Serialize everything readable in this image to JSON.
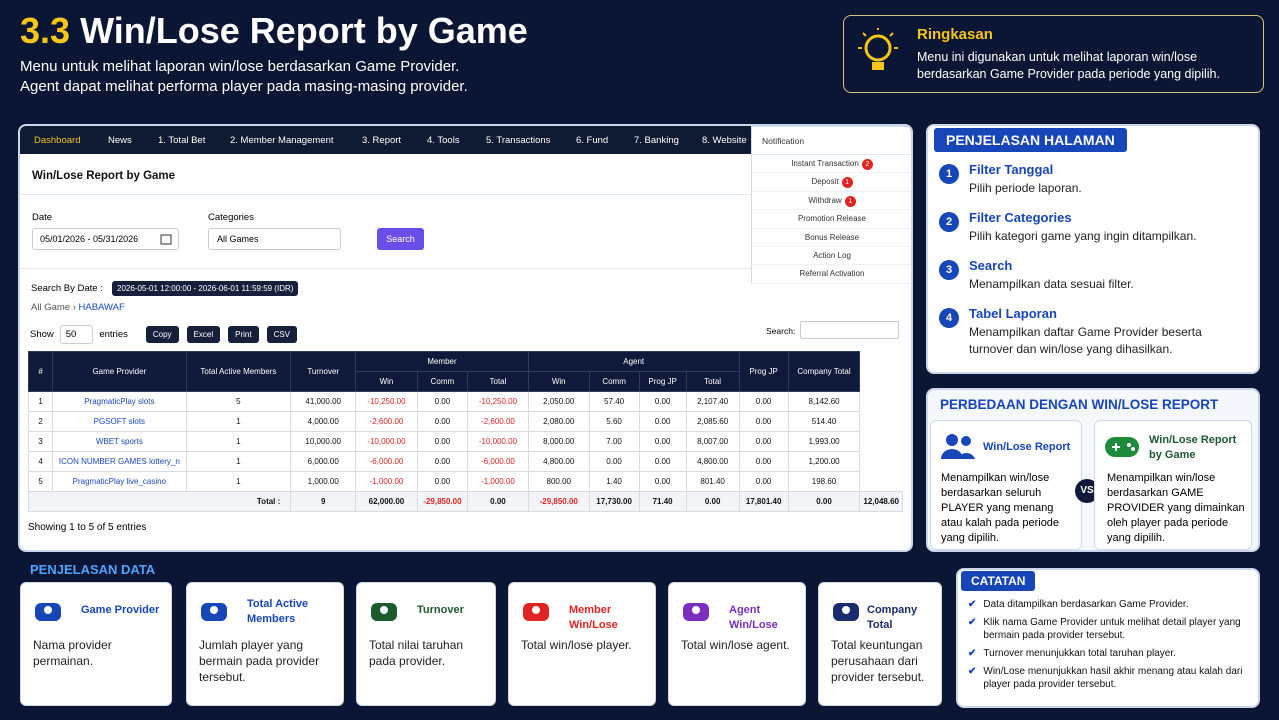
{
  "header": {
    "number": "3.3",
    "title": "Win/Lose Report by Game",
    "lines": [
      "Menu untuk melihat laporan win/lose berdasarkan Game Provider.",
      "Agent dapat melihat performa player pada masing-masing provider."
    ]
  },
  "summary": {
    "title": "Ringkasan",
    "text": "Menu ini digunakan untuk melihat laporan win/lose berdasarkan Game Provider pada periode yang dipilih."
  },
  "nav": [
    "Dashboard",
    "News",
    "1. Total Bet",
    "2. Member Management",
    "3. Report",
    "4. Tools",
    "5. Transactions",
    "6. Fund",
    "7. Banking",
    "8. Website"
  ],
  "notification": {
    "title": "Notification",
    "items": [
      {
        "label": "Instant Transaction",
        "badge": "2"
      },
      {
        "label": "Deposit",
        "badge": "1"
      },
      {
        "label": "Withdraw",
        "badge": "1"
      },
      {
        "label": "Promotion Release"
      },
      {
        "label": "Bonus Release"
      },
      {
        "label": "Action Log"
      },
      {
        "label": "Referral Activation"
      }
    ]
  },
  "report": {
    "title": "Win/Lose Report by Game",
    "date_label": "Date",
    "date_value": "05/01/2026 - 05/31/2026",
    "categories_label": "Categories",
    "category_value": "All Games",
    "search_button": "Search",
    "search_by_date_label": "Search By Date :",
    "search_by_date_value": "2026-05-01 12:00:00 - 2026-06-01 11:59:59 (IDR)",
    "breadcrumb": [
      "All Game",
      "HABAWAF"
    ],
    "show_label": "Show",
    "page_size": "50",
    "entries_label": "entries",
    "buttons": [
      "Copy",
      "Excel",
      "Print",
      "CSV"
    ],
    "search_label": "Search:"
  },
  "table": {
    "headers": [
      "#",
      "Game Provider",
      "Total Active Members",
      "Turnover",
      "Member",
      "Agent",
      "Prog JP",
      "Company Total"
    ],
    "subheaders": [
      "Win",
      "Comm",
      "Total",
      "Win",
      "Comm",
      "Prog JP",
      "Total"
    ],
    "rows": [
      [
        "1",
        "PragmaticPlay slots",
        "5",
        "41,000.00",
        "-10,250.00",
        "0.00",
        "-10,250.00",
        "2,050.00",
        "57.40",
        "0.00",
        "2,107.40",
        "0.00",
        "8,142.60"
      ],
      [
        "2",
        "PGSOFT slots",
        "1",
        "4,000.00",
        "-2,600.00",
        "0.00",
        "-2,600.00",
        "2,080.00",
        "5.60",
        "0.00",
        "2,085.60",
        "0.00",
        "514.40"
      ],
      [
        "3",
        "WBET sports",
        "1",
        "10,000.00",
        "-10,000.00",
        "0.00",
        "-10,000.00",
        "8,000.00",
        "7.00",
        "0.00",
        "8,007.00",
        "0.00",
        "1,993.00"
      ],
      [
        "4",
        "ICON NUMBER GAMES lottery_n",
        "1",
        "6,000.00",
        "-6,000.00",
        "0.00",
        "-6,000.00",
        "4,800.00",
        "0.00",
        "0.00",
        "4,800.00",
        "0.00",
        "1,200.00"
      ],
      [
        "5",
        "PragmaticPlay live_casino",
        "1",
        "1,000.00",
        "-1,000.00",
        "0.00",
        "-1,000.00",
        "800.00",
        "1.40",
        "0.00",
        "801.40",
        "0.00",
        "198.60"
      ]
    ],
    "total": [
      "Total :",
      "9",
      "62,000.00",
      "-29,850.00",
      "0.00",
      "-29,850.00",
      "17,730.00",
      "71.40",
      "0.00",
      "17,801.40",
      "0.00",
      "12,048.60"
    ],
    "footer": "Showing 1 to 5 of 5 entries"
  },
  "explanation": {
    "title": "PENJELASAN HALAMAN",
    "items": [
      {
        "number": "1",
        "title": "Filter Tanggal",
        "text": "Pilih periode laporan."
      },
      {
        "number": "2",
        "title": "Filter Categories",
        "text": "Pilih kategori game yang ingin ditampilkan."
      },
      {
        "number": "3",
        "title": "Search",
        "text": "Menampilkan data sesuai filter."
      },
      {
        "number": "4",
        "title": "Tabel Laporan",
        "text": "Menampilkan daftar Game Provider beserta turnover dan win/lose yang dihasilkan."
      }
    ]
  },
  "difference": {
    "title": "PERBEDAAN DENGAN WIN/LOSE REPORT",
    "left": {
      "title": "Win/Lose Report",
      "text": "Menampilkan win/lose berdasarkan seluruh PLAYER yang menang atau kalah pada periode yang dipilih."
    },
    "vs": "VS",
    "right": {
      "title": "Win/Lose Report by Game",
      "text": "Menampilkan win/lose berdasarkan GAME PROVIDER yang dimainkan oleh player pada periode yang dipilih."
    }
  },
  "data_explanation": {
    "title": "PENJELASAN DATA",
    "cards": [
      {
        "title": "Game Provider",
        "text": "Nama provider permainan."
      },
      {
        "title": "Total Active Members",
        "text": "Jumlah player yang bermain pada provider tersebut."
      },
      {
        "title": "Turnover",
        "text": "Total nilai taruhan pada provider."
      },
      {
        "title": "Member Win/Lose",
        "text": "Total win/lose player."
      },
      {
        "title": "Agent Win/Lose",
        "text": "Total win/lose agent."
      },
      {
        "title": "Company Total",
        "text": "Total keuntungan perusahaan dari provider tersebut."
      }
    ]
  },
  "notes": {
    "title": "CATATAN",
    "items": [
      "Data ditampilkan berdasarkan Game Provider.",
      "Klik nama Game Provider untuk melihat detail player yang bermain pada provider tersebut.",
      "Turnover menunjukkan total taruhan player.",
      "Win/Lose menunjukkan hasil akhir menang atau kalah dari player pada provider tersebut."
    ]
  }
}
